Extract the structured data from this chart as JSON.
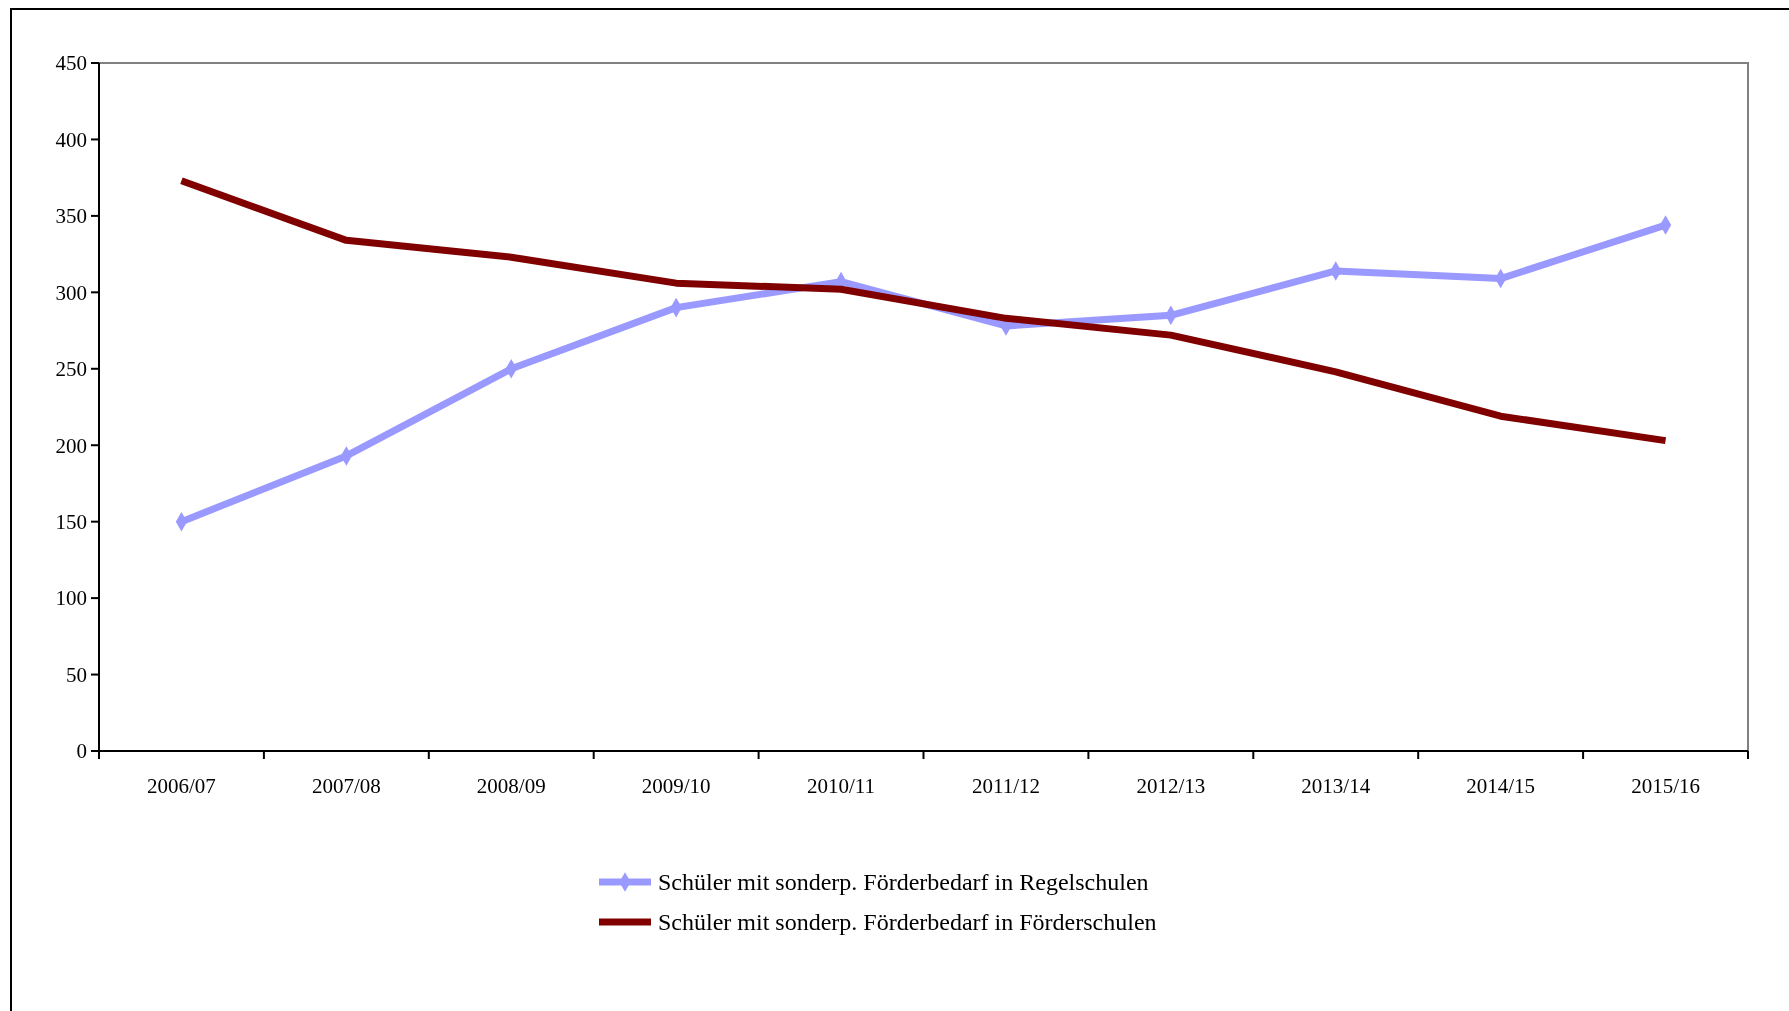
{
  "chart_data": {
    "type": "line",
    "categories": [
      "2006/07",
      "2007/08",
      "2008/09",
      "2009/10",
      "2010/11",
      "2011/12",
      "2012/13",
      "2013/14",
      "2014/15",
      "2015/16"
    ],
    "series": [
      {
        "name": "Schüler mit sonderp. Förderbedarf in Regelschulen",
        "color": "#9999ff",
        "marker": "diamond",
        "values": [
          150,
          193,
          250,
          290,
          307,
          278,
          285,
          314,
          309,
          344
        ]
      },
      {
        "name": "Schüler mit sonderp. Förderbedarf in Förderschulen",
        "color": "#800000",
        "marker": "none",
        "values": [
          373,
          334,
          323,
          306,
          302,
          283,
          272,
          248,
          219,
          203
        ]
      }
    ],
    "ylim": [
      0,
      450
    ],
    "yticks": [
      0,
      50,
      100,
      150,
      200,
      250,
      300,
      350,
      400,
      450
    ],
    "grid": false,
    "legend": "bottom",
    "line_style": "solid"
  }
}
